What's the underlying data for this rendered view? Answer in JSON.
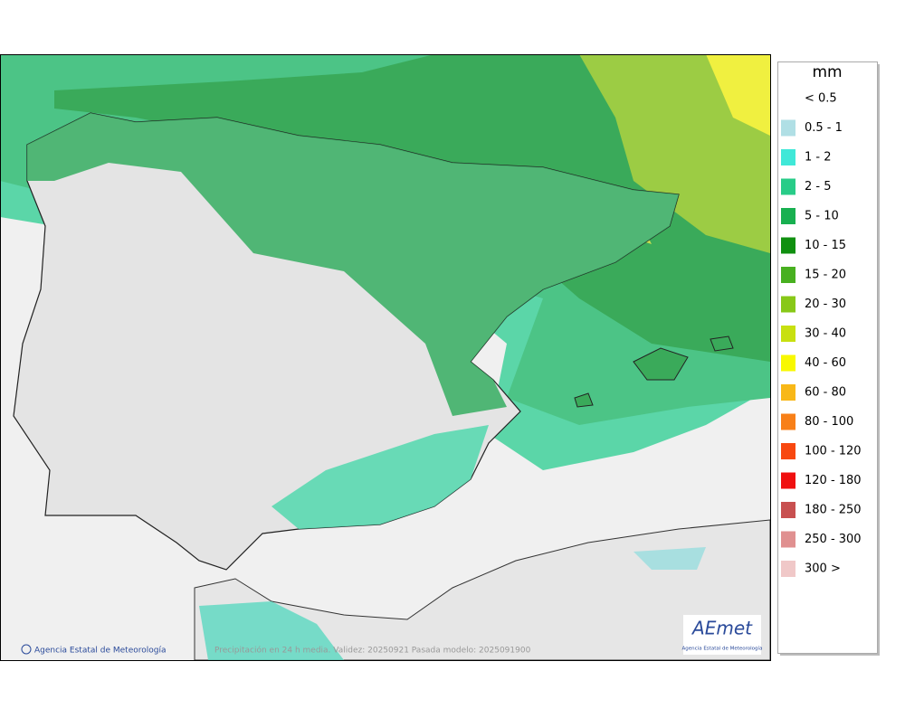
{
  "map": {
    "credit": "Agencia Estatal de Meteorología",
    "caption": "Precipitación en 24 h media. Validez: 20250921 Pasada modelo: 2025091900",
    "logo": {
      "name": "AEmet",
      "subtitle": "Agencia Estatal de Meteorología"
    }
  },
  "legend": {
    "unit": "mm",
    "items": [
      {
        "label": "< 0.5"
      },
      {
        "label": "0.5 - 1",
        "color": "#b0dfe5"
      },
      {
        "label": "1 - 2",
        "color": "#40e8d8"
      },
      {
        "label": "2 - 5",
        "color": "#28cc88"
      },
      {
        "label": "5 - 10",
        "color": "#18b050"
      },
      {
        "label": "10 - 15",
        "color": "#109010"
      },
      {
        "label": "15 - 20",
        "color": "#48b020"
      },
      {
        "label": "20 - 30",
        "color": "#88c818"
      },
      {
        "label": "30 - 40",
        "color": "#c8e010"
      },
      {
        "label": "40 - 60",
        "color": "#f8f800"
      },
      {
        "label": "60 - 80",
        "color": "#f8b818"
      },
      {
        "label": "80 - 100",
        "color": "#f88018"
      },
      {
        "label": "100 - 120",
        "color": "#f84810"
      },
      {
        "label": "120 - 180",
        "color": "#f01010"
      },
      {
        "label": "180 - 250",
        "color": "#c85050"
      },
      {
        "label": "250 - 300",
        "color": "#e09090"
      },
      {
        "label": "300 >",
        "color": "#f0c8c8"
      }
    ]
  }
}
